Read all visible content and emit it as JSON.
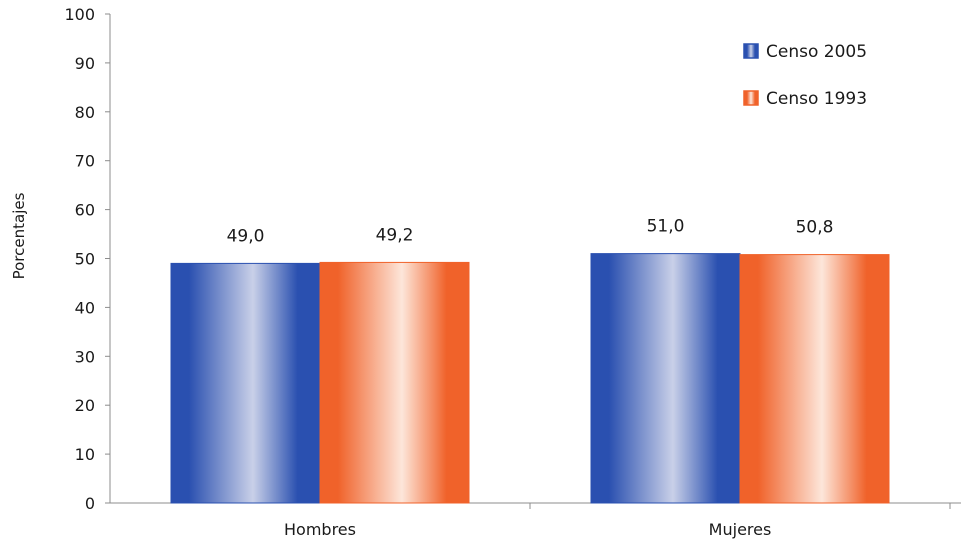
{
  "chart_data": {
    "type": "bar",
    "title": "",
    "xlabel": "",
    "ylabel": "Porcentajes",
    "categories": [
      "Hombres",
      "Mujeres"
    ],
    "ylim": [
      0,
      100
    ],
    "yticks": [
      "0",
      "10",
      "20",
      "30",
      "40",
      "50",
      "60",
      "70",
      "80",
      "90",
      "100"
    ],
    "grid": false,
    "legend_position": "top-right",
    "series": [
      {
        "name": "Censo 2005",
        "values": [
          49.0,
          51.0
        ],
        "labels": [
          "49,0",
          "51,0"
        ],
        "color": "#2a50b0",
        "light_color": "#c9d0e8"
      },
      {
        "name": "Censo 1993",
        "values": [
          49.2,
          50.8
        ],
        "labels": [
          "49,2",
          "50,8"
        ],
        "color": "#f0622a",
        "light_color": "#fde6da"
      }
    ]
  }
}
